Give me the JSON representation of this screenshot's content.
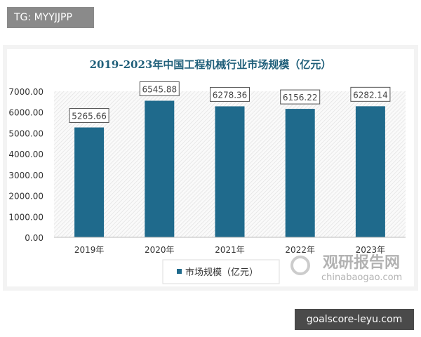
{
  "overlay": {
    "top_label": "TG: MYYJJPP",
    "bottom_label": "goalscore-leyu.com"
  },
  "watermark": {
    "cn": "观研报告网",
    "en": "chinabaogao.com"
  },
  "chart_data": {
    "type": "bar",
    "title": "2019-2023年中国工程机械行业市场规模（亿元）",
    "categories": [
      "2019年",
      "2020年",
      "2021年",
      "2022年",
      "2023年"
    ],
    "series": [
      {
        "name": "市场规模（亿元）",
        "values": [
          5265.66,
          6545.88,
          6278.36,
          6156.22,
          6282.14
        ]
      }
    ],
    "data_labels": [
      "5265.66",
      "6545.88",
      "6278.36",
      "6156.22",
      "6282.14"
    ],
    "yticks": [
      "0.00",
      "1000.00",
      "2000.00",
      "3000.00",
      "4000.00",
      "5000.00",
      "6000.00",
      "7000.00"
    ],
    "ylim": [
      0,
      7000
    ],
    "legend": "bottom",
    "grid": false,
    "colors": {
      "bar": "#1f6a8c",
      "title": "#1f5f7a"
    }
  }
}
